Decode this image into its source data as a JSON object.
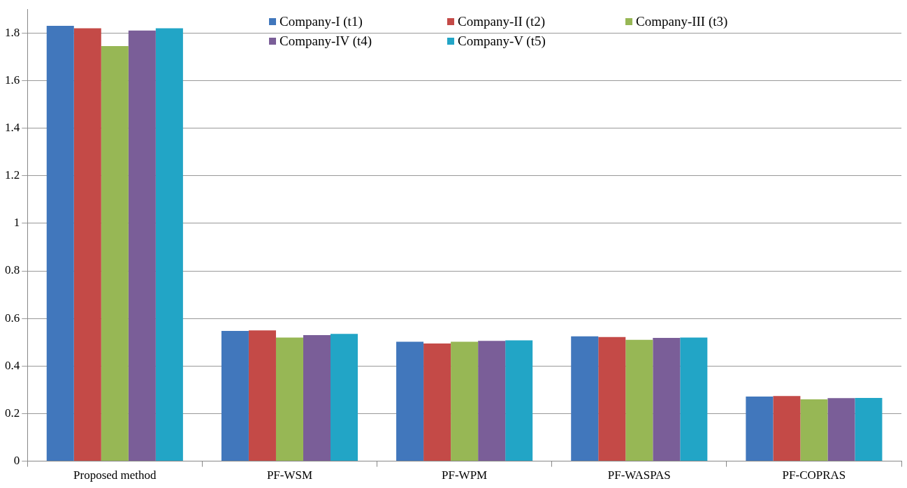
{
  "chart_data": {
    "type": "bar",
    "categories": [
      "Proposed method",
      "PF-WSM",
      "PF-WPM",
      "PF-WASPAS",
      "PF-COPRAS"
    ],
    "series": [
      {
        "name": "Company-I (t1)",
        "color": "#4177bc",
        "values": [
          1.83,
          0.548,
          0.502,
          0.525,
          0.272
        ]
      },
      {
        "name": "Company-II (t2)",
        "color": "#c44a47",
        "values": [
          1.82,
          0.55,
          0.495,
          0.522,
          0.274
        ]
      },
      {
        "name": "Company-III (t3)",
        "color": "#97b755",
        "values": [
          1.745,
          0.52,
          0.502,
          0.51,
          0.26
        ]
      },
      {
        "name": "Company-IV (t4)",
        "color": "#7a5e98",
        "values": [
          1.81,
          0.53,
          0.506,
          0.518,
          0.265
        ]
      },
      {
        "name": "Company-V (t5)",
        "color": "#22a5c6",
        "values": [
          1.82,
          0.535,
          0.508,
          0.52,
          0.266
        ]
      }
    ],
    "ylim": [
      0,
      1.9
    ],
    "yticks": [
      0,
      0.2,
      0.4,
      0.6,
      0.8,
      1,
      1.2,
      1.4,
      1.6,
      1.8
    ],
    "grid": "y",
    "legend": "top"
  }
}
